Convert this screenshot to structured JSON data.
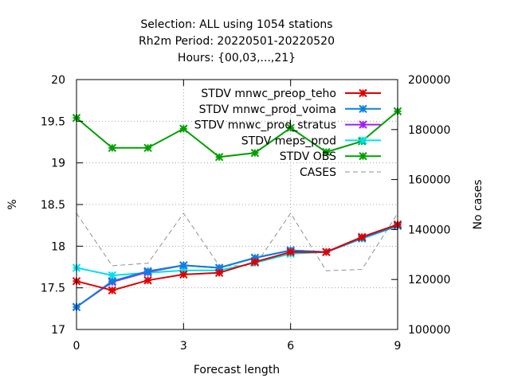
{
  "chart_data": {
    "type": "line",
    "title_lines": [
      "Selection: ALL using  1054 stations",
      "Rh2m   Period: 20220501-20220520",
      "Hours: {00,03,...,21}"
    ],
    "xlabel": "Forecast length",
    "ylabel": "%",
    "y2label": "No cases",
    "xlim": [
      0,
      9
    ],
    "ylim": [
      17,
      20
    ],
    "y2lim": [
      100000,
      200000
    ],
    "x_ticks": [
      0,
      3,
      6,
      9
    ],
    "y_ticks": [
      "17",
      "17.5",
      "18",
      "18.5",
      "19",
      "19.5",
      "20"
    ],
    "y2_ticks": [
      "100000",
      "120000",
      "140000",
      "160000",
      "180000",
      "200000"
    ],
    "grid": true,
    "legend_position": "top-right",
    "x": [
      0,
      1,
      2,
      3,
      4,
      5,
      6,
      7,
      8,
      9
    ],
    "series": [
      {
        "name": "STDV mnwc_preop_teho",
        "color": "#dd0000",
        "axis": "y",
        "values": [
          17.58,
          17.47,
          17.59,
          17.66,
          17.68,
          17.81,
          17.93,
          17.93,
          18.11,
          18.26
        ]
      },
      {
        "name": "STDV mnwc_prod_voima",
        "color": "#0a80e0",
        "axis": "y",
        "values": [
          17.27,
          17.58,
          17.7,
          17.77,
          17.74,
          17.86,
          17.95,
          17.93,
          18.1,
          18.25
        ]
      },
      {
        "name": "STDV mnwc_prod_stratus",
        "color": "#a020f0",
        "axis": "y",
        "values": [
          17.27,
          17.57,
          17.69,
          17.77,
          17.74,
          17.86,
          17.95,
          17.93,
          18.1,
          18.25
        ]
      },
      {
        "name": "STDV meps_prod",
        "color": "#00e0e8",
        "axis": "y",
        "values": [
          17.74,
          17.65,
          17.68,
          17.71,
          17.71,
          17.8,
          17.91,
          17.93,
          18.09,
          18.24
        ]
      },
      {
        "name": "STDV OBS",
        "color": "#00a000",
        "axis": "y",
        "values": [
          19.54,
          19.18,
          19.18,
          19.41,
          19.07,
          19.12,
          19.42,
          19.13,
          19.26,
          19.62
        ]
      },
      {
        "name": "CASES",
        "color": "#909090",
        "axis": "y2",
        "dashed": true,
        "values": [
          146500,
          125500,
          126500,
          146500,
          125500,
          125500,
          146500,
          123500,
          124000,
          146500
        ]
      }
    ]
  }
}
